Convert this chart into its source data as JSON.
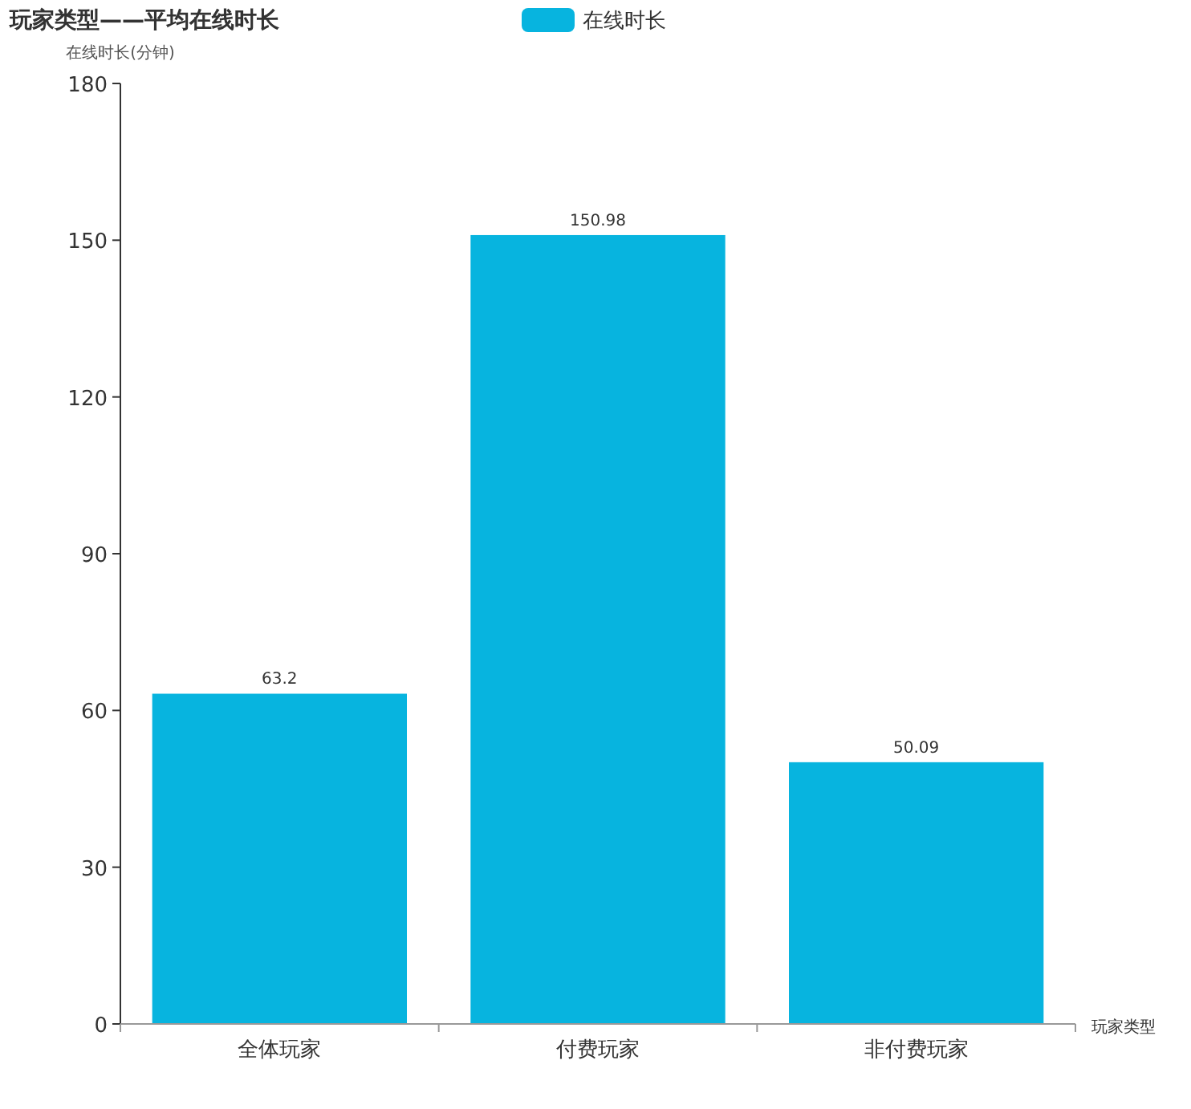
{
  "chart_data": {
    "type": "bar",
    "title": "玩家类型——平均在线时长",
    "xlabel": "玩家类型",
    "ylabel": "在线时长(分钟)",
    "categories": [
      "全体玩家",
      "付费玩家",
      "非付费玩家"
    ],
    "series": [
      {
        "name": "在线时长",
        "color": "#07b4df",
        "values": [
          63.2,
          150.98,
          50.09
        ]
      }
    ],
    "ylim": [
      0,
      180
    ],
    "yticks": [
      0,
      30,
      60,
      90,
      120,
      150,
      180
    ],
    "data_labels": true,
    "legend": "top",
    "grid": false
  }
}
